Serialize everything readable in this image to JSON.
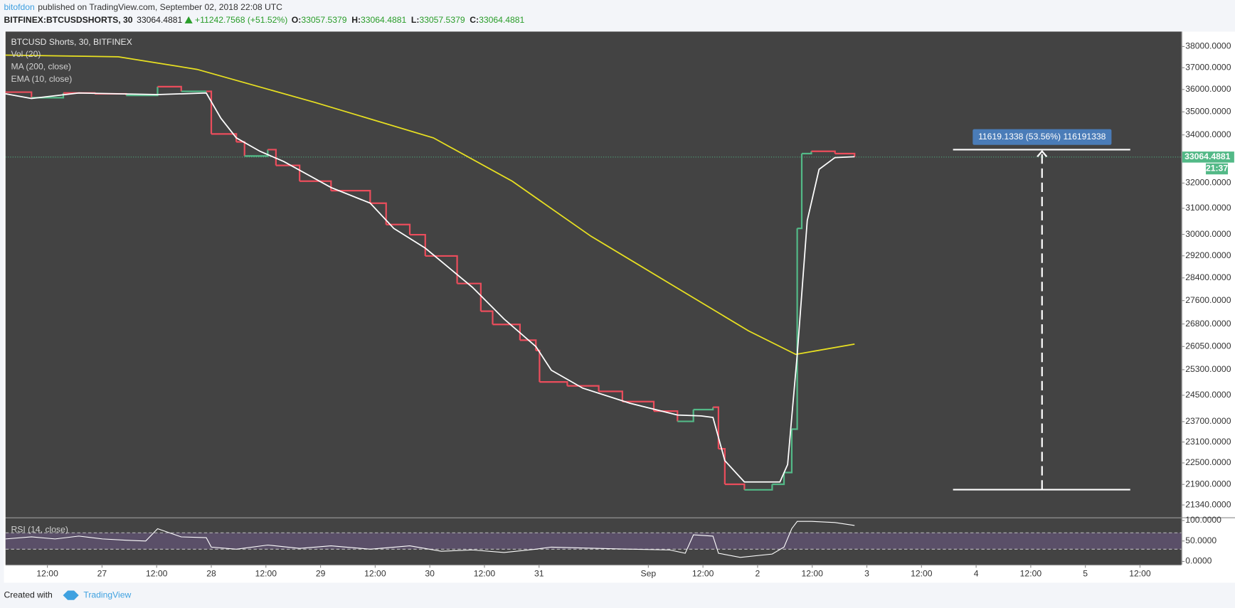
{
  "header": {
    "author": "bitofdon",
    "published": "published on TradingView.com, September 02, 2018 22:08 UTC",
    "symbol": "BITFINEX:BTCUSDSHORTS, 30",
    "change": "+11242.7568 (+51.52%)",
    "ohlc": [
      {
        "label": "O:",
        "value": 33057.5379
      },
      {
        "label": "H:",
        "value": 33064.4881
      },
      {
        "label": "L:",
        "value": 33057.5379
      },
      {
        "label": "C:",
        "value": 33064.4881
      }
    ]
  },
  "footer": {
    "created": "Created with",
    "brand": "TradingView"
  },
  "chart_data": {
    "type": "line",
    "title": "BTCUSD Shorts, 30, BITFINEX",
    "volume_label": "Vol (20)",
    "log_scale": true,
    "xlim": [
      2.8,
      261.1
    ],
    "xticks": [
      {
        "value": 12,
        "label": "12:00"
      },
      {
        "value": 24,
        "label": "27"
      },
      {
        "value": 36,
        "label": "12:00"
      },
      {
        "value": 48,
        "label": "28"
      },
      {
        "value": 60,
        "label": "12:00"
      },
      {
        "value": 72,
        "label": "29"
      },
      {
        "value": 84,
        "label": "12:00"
      },
      {
        "value": 96,
        "label": "30"
      },
      {
        "value": 108,
        "label": "12:00"
      },
      {
        "value": 120,
        "label": "31"
      },
      {
        "value": 144,
        "label": "Sep"
      },
      {
        "value": 156,
        "label": "12:00"
      },
      {
        "value": 168,
        "label": "2"
      },
      {
        "value": 180,
        "label": "12:00"
      },
      {
        "value": 192,
        "label": "3"
      },
      {
        "value": 204,
        "label": "12:00"
      },
      {
        "value": 216,
        "label": "4"
      },
      {
        "value": 228,
        "label": "12:00"
      },
      {
        "value": 240,
        "label": "5"
      },
      {
        "value": 252,
        "label": "12:00"
      }
    ],
    "ylim": [
      21010,
      38721
    ],
    "yticks": [
      {
        "value": 38000,
        "label": "38000.0000"
      },
      {
        "value": 37000,
        "label": "37000.0000"
      },
      {
        "value": 36000,
        "label": "36000.0000"
      },
      {
        "value": 35000,
        "label": "35000.0000"
      },
      {
        "value": 34000,
        "label": "34000.0000"
      },
      {
        "value": 32000,
        "label": "32000.0000"
      },
      {
        "value": 31000,
        "label": "31000.0000"
      },
      {
        "value": 30000,
        "label": "30000.0000"
      },
      {
        "value": 29200,
        "label": "29200.0000"
      },
      {
        "value": 28400,
        "label": "28400.0000"
      },
      {
        "value": 27600,
        "label": "27600.0000"
      },
      {
        "value": 26800,
        "label": "26800.0000"
      },
      {
        "value": 26050,
        "label": "26050.0000"
      },
      {
        "value": 25300,
        "label": "25300.0000"
      },
      {
        "value": 24500,
        "label": "24500.0000"
      },
      {
        "value": 23700,
        "label": "23700.0000"
      },
      {
        "value": 23100,
        "label": "23100.0000"
      },
      {
        "value": 22500,
        "label": "22500.0000"
      },
      {
        "value": 21900,
        "label": "21900.0000"
      },
      {
        "value": 21340,
        "label": "21340.0000"
      }
    ],
    "series": [
      {
        "style": "step",
        "up_color": "#53b987",
        "down_color": "#eb4d5c",
        "x": [
          2.8,
          8.5,
          15.5,
          22.4,
          29.3,
          36.2,
          41.4,
          46.9,
          48,
          53.5,
          55.3,
          60.4,
          62.2,
          67.4,
          74.3,
          82.9,
          86.4,
          91.6,
          95,
          102,
          107.2,
          109.8,
          115.8,
          119.3,
          120.1,
          126.2,
          133.1,
          138.3,
          145.2,
          150.4,
          153.9,
          158.2,
          159.4,
          160.8,
          165.1,
          171.2,
          173.8,
          175.5,
          176.7,
          177.7,
          179.8,
          185,
          189.3
        ],
        "values": [
          35880,
          35629,
          35842,
          35804,
          35735,
          36127,
          35913,
          35913,
          34040,
          33702,
          33109,
          33375,
          32719,
          32076,
          31696,
          31200,
          30373,
          29986,
          29195,
          28200,
          27235,
          26784,
          26258,
          25920,
          24913,
          24791,
          24620,
          24305,
          24016,
          23708,
          24062,
          24134,
          22903,
          21903,
          21751,
          21903,
          22230,
          23476,
          30225,
          33208,
          33307,
          33208,
          33064.4881
        ]
      },
      {
        "name": "MA (200, close)",
        "color": "#e8e021",
        "x": [
          2.8,
          27.6,
          44.9,
          70.8,
          96.8,
          114.1,
          131.4,
          148.7,
          166,
          176.4,
          189.3
        ],
        "values": [
          37590,
          37513,
          36924,
          35416,
          33873,
          32076,
          29929,
          28200,
          26570,
          25794,
          26129
        ]
      },
      {
        "name": "EMA (10, close)",
        "color": "#ffffff",
        "x": [
          2.8,
          8.5,
          18.9,
          36.2,
          46.9,
          50.1,
          53.5,
          58.7,
          63.9,
          74.3,
          82.9,
          88.1,
          95,
          105.4,
          112.3,
          119.3,
          122.7,
          129.6,
          140,
          150.4,
          155.6,
          158.2,
          160.8,
          165.1,
          172.9,
          174.6,
          176.7,
          178.9,
          181.5,
          185,
          189.3
        ],
        "values": [
          35804,
          35594,
          35842,
          35769,
          35842,
          34724,
          33873,
          33307,
          32881,
          31823,
          31200,
          30225,
          29484,
          28063,
          26969,
          26049,
          25285,
          24719,
          24255,
          23898,
          23872,
          23826,
          22564,
          21968,
          21968,
          22454,
          25794,
          30526,
          32558,
          33045,
          33079
        ]
      }
    ],
    "countdown": "21:37",
    "measure": {
      "label": "11619.1338 (53.56%) 116191338",
      "from": 21756,
      "to": 33375
    },
    "rsi": {
      "name": "RSI (14, close)",
      "color": "#ffffff",
      "bands": [
        30,
        70
      ],
      "band_color": "#6e5a86",
      "ylim": [
        -7.7,
        105.8
      ],
      "yticks": [
        {
          "value": 100,
          "label": "100.0000"
        },
        {
          "value": 50,
          "label": "50.0000"
        },
        {
          "value": 0,
          "label": "0.0000"
        }
      ],
      "x": [
        2.8,
        8.5,
        13.7,
        18.9,
        24.1,
        29.3,
        33.6,
        36.2,
        41.4,
        46.9,
        48,
        53.5,
        60.4,
        67.4,
        74.3,
        82.9,
        91.6,
        98.5,
        105.4,
        112.3,
        119.3,
        122.7,
        133.1,
        140,
        148.7,
        152.1,
        153.9,
        158.2,
        159.4,
        164.2,
        171.2,
        173.8,
        175.5,
        176.7,
        179.8,
        185,
        189.3
      ],
      "values": [
        55,
        60,
        55,
        62,
        55,
        52,
        50,
        80,
        60,
        58,
        35,
        30,
        40,
        32,
        38,
        30,
        38,
        25,
        28,
        22,
        30,
        35,
        32,
        30,
        28,
        20,
        65,
        62,
        20,
        10,
        18,
        35,
        80,
        98,
        98,
        95,
        88
      ]
    }
  }
}
